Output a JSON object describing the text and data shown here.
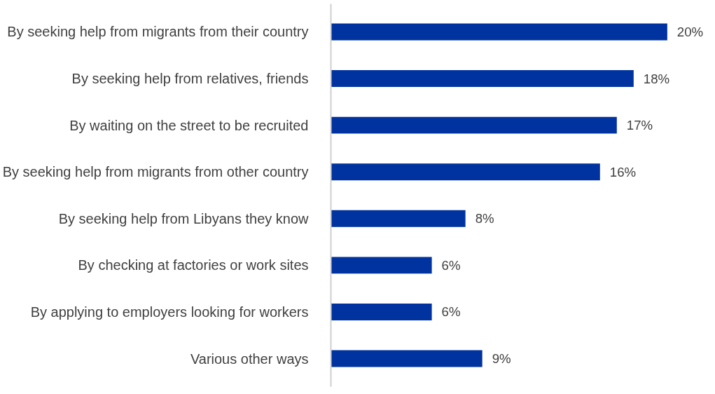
{
  "chart_data": {
    "type": "bar",
    "orientation": "horizontal",
    "categories": [
      "By seeking help from migrants from their country",
      "By seeking help from relatives, friends",
      "By waiting on the street to be recruited",
      "By seeking help from migrants from other country",
      "By seeking help from Libyans they know",
      "By checking at factories or work sites",
      "By applying to employers looking for workers",
      "Various other ways"
    ],
    "values": [
      20,
      18,
      17,
      16,
      8,
      6,
      6,
      9
    ],
    "value_labels": [
      "20%",
      "18%",
      "17%",
      "16%",
      "8%",
      "6%",
      "6%",
      "9%"
    ],
    "color": "#0033a0",
    "grid": false
  }
}
